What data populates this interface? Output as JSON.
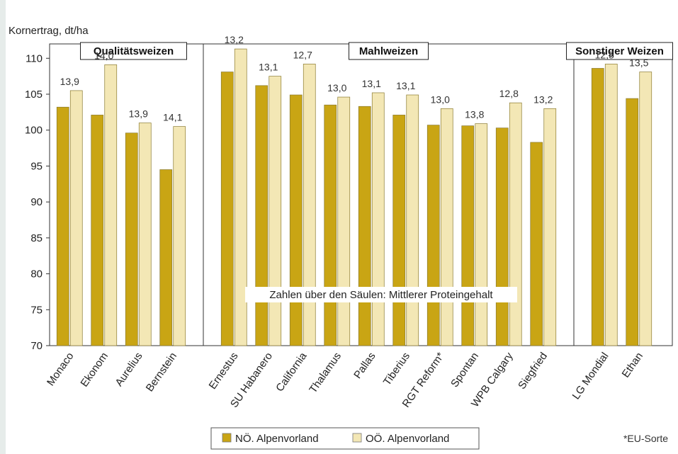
{
  "chart_data": {
    "type": "bar",
    "ylabel": "Kornertrag, dt/ha",
    "ylim": [
      70,
      112
    ],
    "yticks": [
      70,
      75,
      80,
      85,
      90,
      95,
      100,
      105,
      110
    ],
    "annotation": "Zahlen über den Säulen: Mittlerer Proteingehalt",
    "footnote": "*EU-Sorte",
    "groups": [
      {
        "name": "Qualitätsweizen",
        "categories": [
          "Monaco",
          "Ekonom",
          "Aurelius",
          "Bernstein"
        ]
      },
      {
        "name": "Mahlweizen",
        "categories": [
          "Ernestus",
          "SU Habanero",
          "California",
          "Thalamus",
          "Pallas",
          "Tiberius",
          "RGT Reform*",
          "Spontan",
          "WPB Calgary",
          "Siegfried"
        ]
      },
      {
        "name": "Sonstiger Weizen",
        "categories": [
          "LG Mondial",
          "Ethan"
        ]
      }
    ],
    "categories": [
      "Monaco",
      "Ekonom",
      "Aurelius",
      "Bernstein",
      "Ernestus",
      "SU Habanero",
      "California",
      "Thalamus",
      "Pallas",
      "Tiberius",
      "RGT Reform*",
      "Spontan",
      "WPB Calgary",
      "Siegfried",
      "LG Mondial",
      "Ethan"
    ],
    "series": [
      {
        "name": "NÖ. Alpenvorland",
        "color": "#c9a514",
        "values": [
          103.2,
          102.1,
          99.6,
          94.5,
          108.1,
          106.2,
          104.9,
          103.5,
          103.3,
          102.1,
          100.7,
          100.6,
          100.3,
          98.3,
          108.6,
          104.4
        ]
      },
      {
        "name": "OÖ. Alpenvorland",
        "color": "#f3e7b5",
        "values": [
          105.5,
          109.1,
          101.0,
          100.5,
          111.3,
          107.5,
          109.2,
          104.6,
          105.2,
          104.9,
          103.0,
          100.9,
          103.8,
          103.0,
          109.2,
          108.1
        ]
      }
    ],
    "data_labels": [
      "13,9",
      "14,0",
      "13,9",
      "14,1",
      "13,2",
      "13,1",
      "12,7",
      "13,0",
      "13,1",
      "13,1",
      "13,0",
      "13,8",
      "12,8",
      "13,2",
      "12,5",
      "13,5"
    ]
  }
}
